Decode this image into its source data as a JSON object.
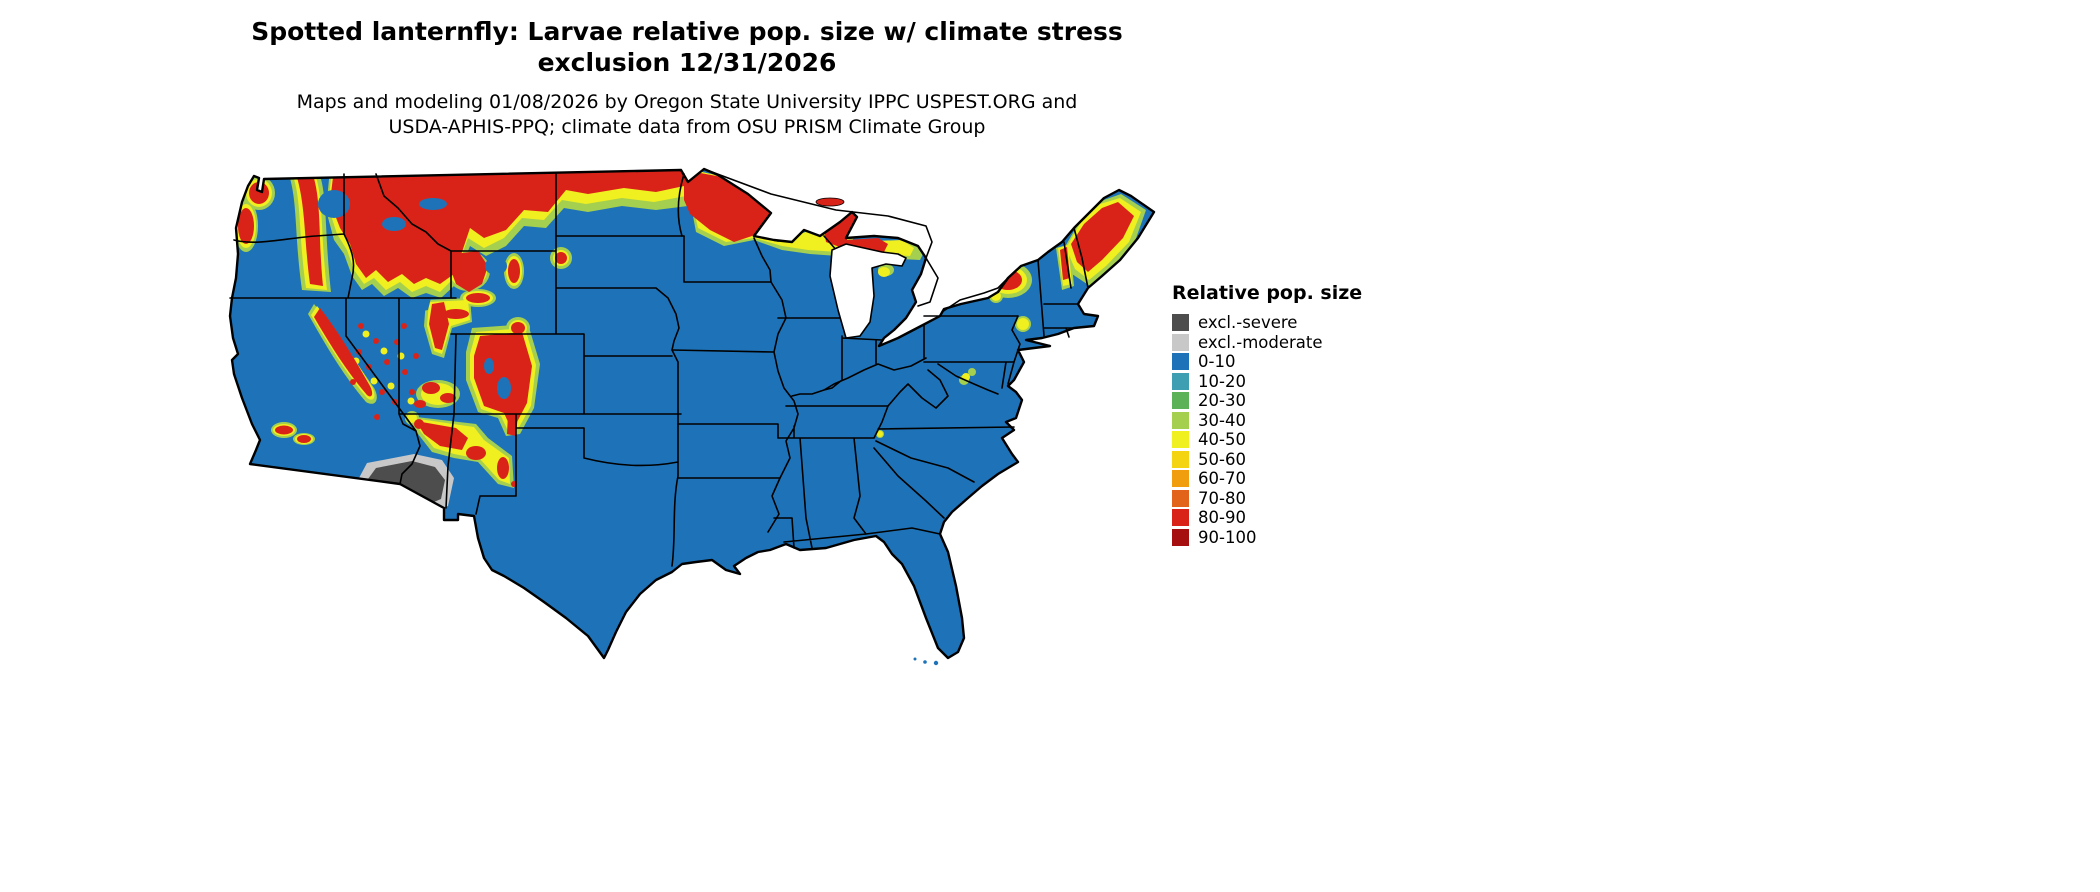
{
  "title": {
    "line1": "Spotted lanternfly: Larvae relative pop. size w/ climate stress",
    "line2": "exclusion 12/31/2026"
  },
  "subtitle": {
    "line1": "Maps and modeling 01/08/2026 by Oregon State University IPPC USPEST.ORG and",
    "line2": "USDA-APHIS-PPQ; climate data from OSU PRISM Climate Group"
  },
  "legend": {
    "title": "Relative pop. size",
    "items": [
      {
        "label": "excl.-severe",
        "color": "#4d4d4d"
      },
      {
        "label": "excl.-moderate",
        "color": "#c8c8c8"
      },
      {
        "label": "0-10",
        "color": "#1e73b8"
      },
      {
        "label": "10-20",
        "color": "#3e9fb3"
      },
      {
        "label": "20-30",
        "color": "#5cb257"
      },
      {
        "label": "30-40",
        "color": "#a5cf4f"
      },
      {
        "label": "40-50",
        "color": "#f0ef1f"
      },
      {
        "label": "50-60",
        "color": "#f4d411"
      },
      {
        "label": "60-70",
        "color": "#f19e0e"
      },
      {
        "label": "70-80",
        "color": "#e2641b"
      },
      {
        "label": "80-90",
        "color": "#da2318"
      },
      {
        "label": "90-100",
        "color": "#a50f0f"
      }
    ]
  }
}
